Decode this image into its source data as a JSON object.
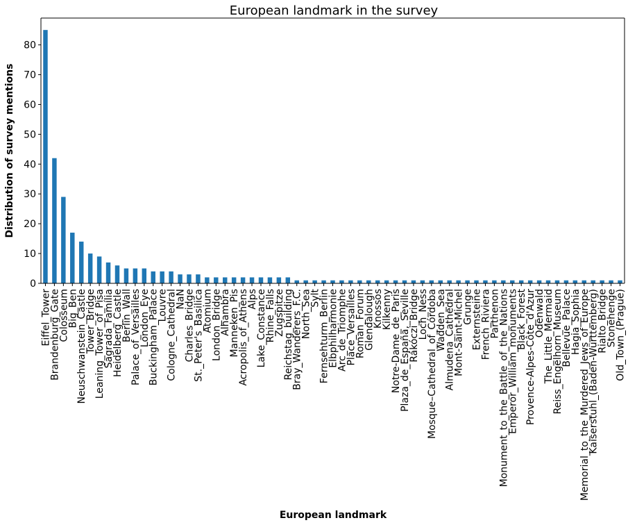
{
  "chart_data": {
    "type": "bar",
    "title": "European landmark in the survey",
    "xlabel": "European landmark",
    "ylabel": "Distribution of survey mentions",
    "ylim": [
      0,
      89
    ],
    "yticks": [
      0,
      10,
      20,
      30,
      40,
      50,
      60,
      70,
      80
    ],
    "grid": false,
    "bar_color": "#1f77b4",
    "categories": [
      "Eiffel_Tower",
      "Brandenburg_Gate",
      "Colosseum",
      "Big_Ben",
      "Neuschwanstein_Castle",
      "Tower_Bridge",
      "Leaning_Tower_of_Pisa",
      "Sagrada_Família",
      "Heidelberg_Castle",
      "Berlin_Wall",
      "Palace_of_Versailles",
      "London_Eye",
      "Buckingham_Palace",
      "Louvre",
      "Cologne_Cathedral",
      "NaN",
      "Charles_Bridge",
      "St._Peter's_Basilica",
      "Atomium",
      "London_Bridge",
      "Alhambra",
      "Manneken_Pis",
      "Acropolis_of_Athens",
      "Alps",
      "Lake_Constance",
      "Rhine_Falls",
      "Zugspitze",
      "Reichstag_building",
      "Bray_Wanderers_F.C.",
      "North_Sea",
      "Sylt",
      "Fernsehturm_Berlin",
      "Elbphilharmonie",
      "Arc_de_Triomphe",
      "Place_Versailles",
      "Roman_Forum",
      "Glendalough",
      "Knossos",
      "Kilkenny",
      "Notre-Dame_de_Paris",
      "Plaza_de_España,_Seville",
      "Rákóczi_Bridge",
      "Loch_Ness",
      "Mosque–Cathedral_of_Córdoba",
      "Wadden_Sea",
      "Almudena_Cathedral",
      "Mont-Saint-Michel",
      "Grunge",
      "Externsteine",
      "French_Riviera",
      "Parthenon",
      "Monument_to_the_Battle_of_the_Nations",
      "Emperor_William_monuments",
      "Black_Forest",
      "Provence-Alpes-Côte_d'Azur",
      "Odenwald",
      "The_Little_Mermaid",
      "Reiss_Engelhorn_Museum",
      "Bellevue_Palace",
      "Hagia_Sophia",
      "Memorial_to_the_Murdered_Jews_of_Europe",
      "Kaiserstuhl_(Baden-Württemberg)",
      "Rialto_Bridge",
      "Stonehenge",
      "Old_Town_(Prague)"
    ],
    "values": [
      85,
      42,
      29,
      17,
      14,
      10,
      9,
      7,
      6,
      5,
      5,
      5,
      4,
      4,
      4,
      3,
      3,
      3,
      2,
      2,
      2,
      2,
      2,
      2,
      2,
      2,
      2,
      2,
      1,
      1,
      1,
      1,
      1,
      1,
      1,
      1,
      1,
      1,
      1,
      1,
      1,
      1,
      1,
      1,
      1,
      1,
      1,
      1,
      1,
      1,
      1,
      1,
      1,
      1,
      1,
      1,
      1,
      1,
      1,
      1,
      1,
      1,
      1,
      1,
      1
    ]
  }
}
